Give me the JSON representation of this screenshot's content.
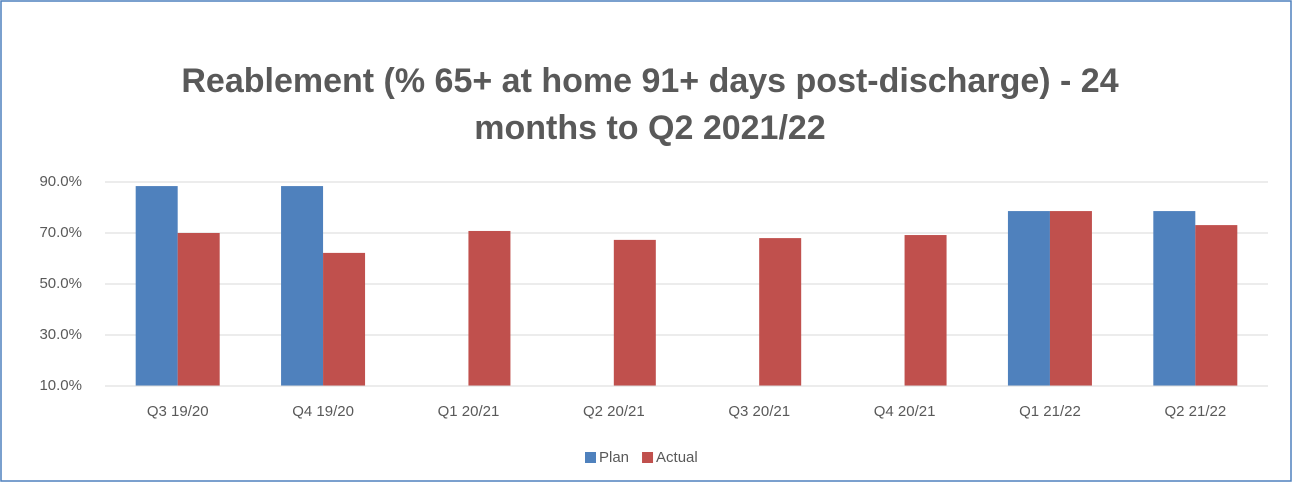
{
  "chart_data": {
    "type": "bar",
    "title": "Reablement (% 65+ at home 91+ days post-discharge) - 24 months to Q2 2021/22",
    "categories": [
      "Q3 19/20",
      "Q4 19/20",
      "Q1 20/21",
      "Q2 20/21",
      "Q3 20/21",
      "Q4 20/21",
      "Q1 21/22",
      "Q2 21/22"
    ],
    "series": [
      {
        "name": "Plan",
        "color": "#4f81bd",
        "values": [
          88.4,
          88.4,
          null,
          null,
          null,
          null,
          78.6,
          78.6
        ]
      },
      {
        "name": "Actual",
        "color": "#c0504d",
        "values": [
          70.0,
          62.2,
          70.8,
          67.3,
          68.0,
          69.2,
          78.6,
          73.1
        ]
      }
    ],
    "ylim": [
      10,
      90
    ],
    "yticks": [
      {
        "value": 10,
        "label": "10.0%"
      },
      {
        "value": 30,
        "label": "30.0%"
      },
      {
        "value": 50,
        "label": "50.0%"
      },
      {
        "value": 70,
        "label": "70.0%"
      },
      {
        "value": 90,
        "label": "90.0%"
      }
    ],
    "grid": true,
    "legend": "bottom"
  }
}
